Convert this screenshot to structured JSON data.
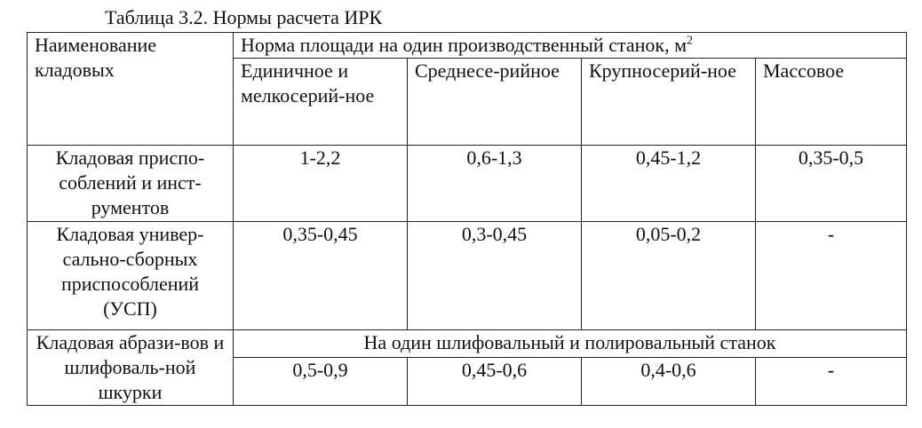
{
  "caption": "Таблица 3.2. Нормы расчета ИРК",
  "header": {
    "col1": "Наименование кладовых",
    "group_title": "Норма площади на один производственный станок, м",
    "group_unit_sup": "2",
    "sub": [
      "Единичное и мелкосерий-ное",
      "Среднесе-рийное",
      "Крупносерий-ное",
      "Массовое"
    ]
  },
  "rows": [
    {
      "name": "Кладовая приспо-соблений и инст-рументов",
      "values": [
        "1-2,2",
        "0,6-1,3",
        "0,45-1,2",
        "0,35-0,5"
      ]
    },
    {
      "name": "Кладовая универ-сально-сборных приспособлений (УСП)",
      "values": [
        "0,35-0,45",
        "0,3-0,45",
        "0,05-0,2",
        "-"
      ]
    },
    {
      "name": "Кладовая абрази-вов и шлифоваль-ной шкурки",
      "span_note": "На один шлифовальный и полировальный станок",
      "values": [
        "0,5-0,9",
        "0,45-0,6",
        "0,4-0,6",
        "-"
      ]
    }
  ]
}
